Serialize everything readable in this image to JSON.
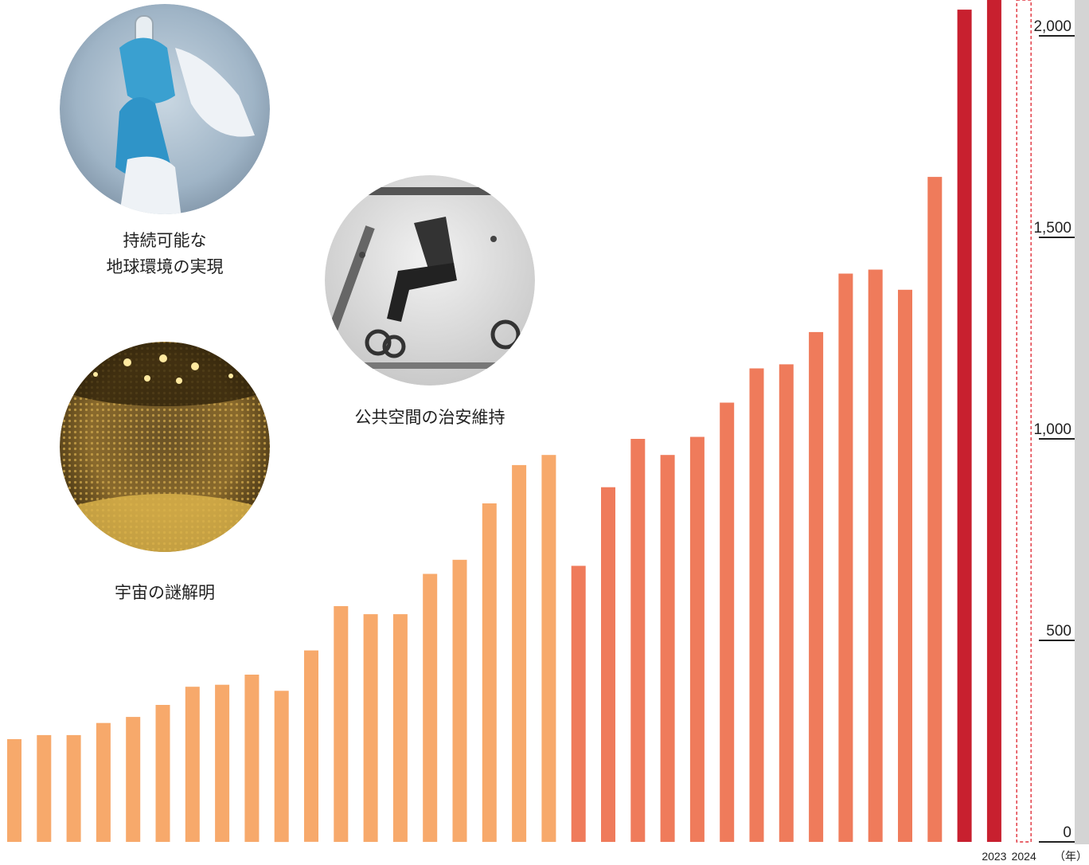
{
  "chart_data": {
    "type": "bar",
    "series": [
      {
        "values": [
          255,
          265,
          265,
          295,
          310,
          340,
          385,
          390,
          415,
          375,
          475,
          585,
          565,
          565,
          665,
          700,
          840,
          935,
          960,
          685,
          880,
          1000,
          960,
          1005,
          1090,
          1175,
          1185,
          1265,
          1410,
          1420,
          1370,
          1650,
          2065,
          2110,
          2110
        ]
      }
    ],
    "x_labels_shown": [
      "2023",
      "2024"
    ],
    "x_unit": "（年）",
    "ylim": [
      0,
      2100
    ],
    "y_ticks": [
      0,
      500,
      1000,
      1500,
      2000
    ],
    "y_tick_labels": [
      "0",
      "500",
      "1,000",
      "1,500",
      "2,000"
    ],
    "last_bar_style": "dashed-outline",
    "bar_colors": {
      "light": "#F7A96B",
      "mid": "#EF7B5B",
      "dark": "#C8202F",
      "outline": "#E0303A"
    },
    "axis_band_color": "#D4D4D4"
  },
  "captions": {
    "environment": "持続可能な\n地球環境の実現",
    "security": "公共空間の治安維持",
    "universe": "宇宙の謎解明"
  },
  "photos": [
    {
      "name": "lab-test-tube-photo"
    },
    {
      "name": "xray-baggage-photo"
    },
    {
      "name": "neutrino-detector-photo"
    }
  ]
}
